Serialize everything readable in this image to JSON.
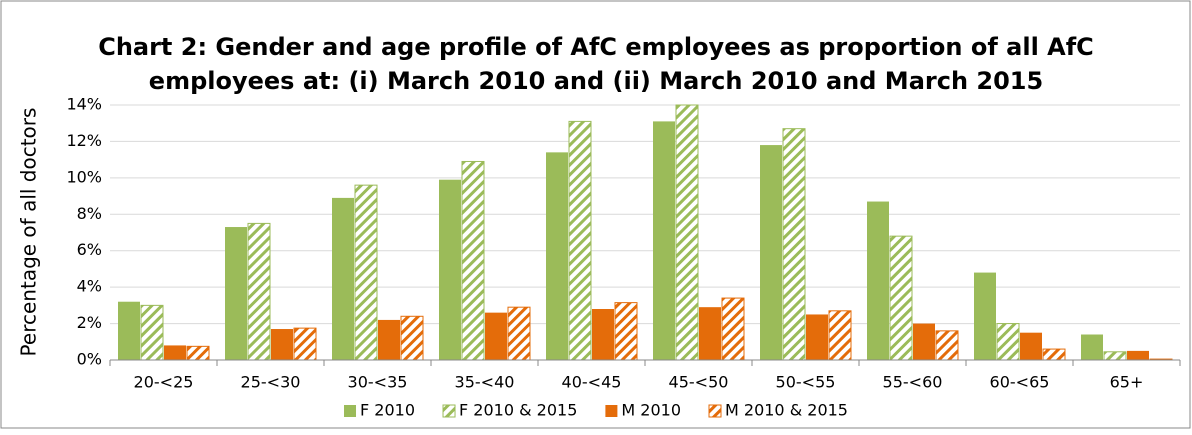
{
  "chart_data": {
    "type": "bar",
    "title": [
      "Chart 2: Gender and age profile of AfC employees as proportion of all AfC",
      "employees at: (i) March 2010 and (ii) March 2010 and March 2015"
    ],
    "y_label": "Percentage of all doctors",
    "categories": [
      "20-<25",
      "25-<30",
      "30-<35",
      "35-<40",
      "40-<45",
      "45-<50",
      "50-<55",
      "55-<60",
      "60-<65",
      "65+"
    ],
    "series": [
      {
        "name": "F 2010",
        "color": "#9bbb59",
        "hatch": false,
        "values": [
          3.2,
          7.3,
          8.9,
          9.9,
          11.4,
          13.1,
          11.8,
          8.7,
          4.8,
          1.4
        ]
      },
      {
        "name": "F 2010 & 2015",
        "color": "#9bbb59",
        "hatch": true,
        "values": [
          3.0,
          7.5,
          9.6,
          10.9,
          13.1,
          14.0,
          12.7,
          6.8,
          2.0,
          0.45
        ]
      },
      {
        "name": "M 2010",
        "color": "#e46c0a",
        "hatch": false,
        "values": [
          0.8,
          1.7,
          2.2,
          2.6,
          2.8,
          2.9,
          2.5,
          2.0,
          1.5,
          0.5
        ]
      },
      {
        "name": "M 2010 & 2015",
        "color": "#e46c0a",
        "hatch": true,
        "values": [
          0.75,
          1.75,
          2.4,
          2.9,
          3.15,
          3.4,
          2.7,
          1.6,
          0.6,
          0.05
        ]
      }
    ],
    "ylim": [
      0,
      14
    ],
    "yticks": [
      {
        "value": 0,
        "label": "0%"
      },
      {
        "value": 2,
        "label": "2%"
      },
      {
        "value": 4,
        "label": "4%"
      },
      {
        "value": 6,
        "label": "6%"
      },
      {
        "value": 8,
        "label": "8%"
      },
      {
        "value": 10,
        "label": "10%"
      },
      {
        "value": 12,
        "label": "12%"
      },
      {
        "value": 14,
        "label": "14%"
      }
    ],
    "grid": true,
    "legend": "bottom"
  }
}
